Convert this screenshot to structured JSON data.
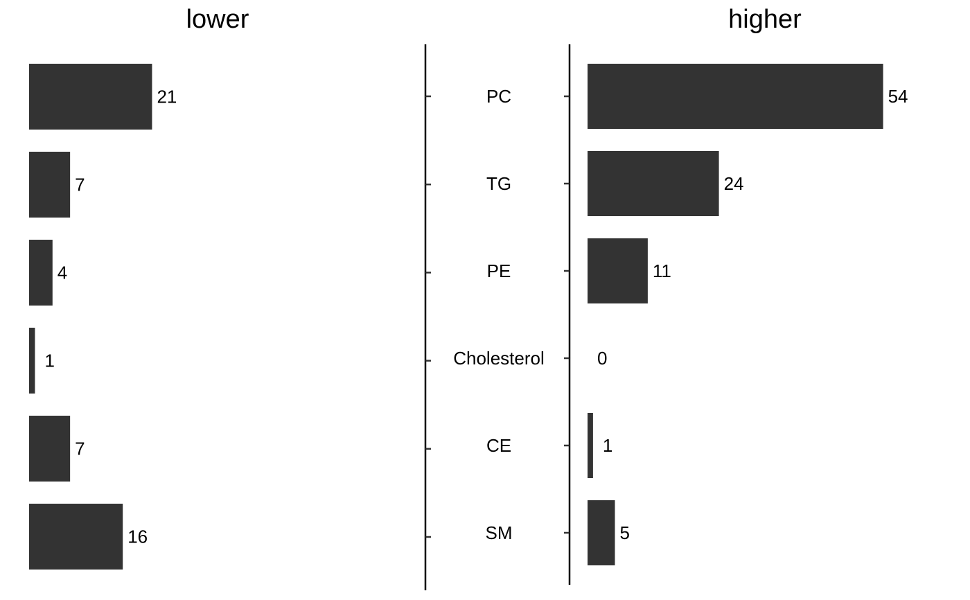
{
  "chart_data": {
    "type": "bar",
    "orientation": "horizontal",
    "categories": [
      "PC",
      "TG",
      "PE",
      "Cholesterol",
      "CE",
      "SM"
    ],
    "series": [
      {
        "name": "lower",
        "values": [
          21,
          7,
          4,
          1,
          7,
          16
        ]
      },
      {
        "name": "higher",
        "values": [
          54,
          24,
          11,
          0,
          1,
          5
        ]
      }
    ],
    "bar_color": "#333333",
    "grid": false,
    "legend": "none"
  }
}
